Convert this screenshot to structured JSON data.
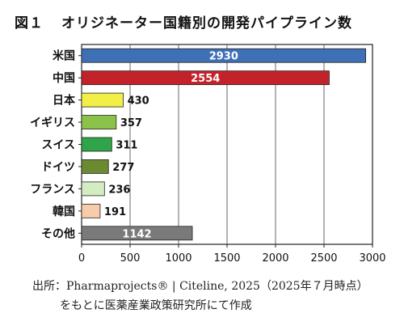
{
  "title": {
    "figure": "図１",
    "text": "オリジネーター国籍別の開発パイプライン数"
  },
  "source": {
    "line1": "出所：Pharmaprojects® | Citeline, 2025（2025年７月時点）",
    "line2": "をもとに医薬産業政策研究所にて作成"
  },
  "chart_data": {
    "type": "bar",
    "orientation": "horizontal",
    "title": "オリジネーター国籍別の開発パイプライン数",
    "xlabel": "",
    "ylabel": "",
    "xlim": [
      0,
      3000
    ],
    "ticks": [
      "0",
      "500",
      "1000",
      "1500",
      "2000",
      "2500",
      "3000"
    ],
    "grid": "vertical",
    "categories": [
      "米国",
      "中国",
      "日本",
      "イギリス",
      "スイス",
      "ドイツ",
      "フランス",
      "韓国",
      "その他"
    ],
    "values": [
      2930,
      2554,
      430,
      357,
      311,
      277,
      236,
      191,
      1142
    ],
    "colors": [
      "#3f6fb5",
      "#c4222b",
      "#f2ef46",
      "#8bc34a",
      "#2fa449",
      "#6b8a32",
      "#d4ecc1",
      "#f8ccaa",
      "#7a7a7a"
    ],
    "label_inside": [
      true,
      true,
      false,
      false,
      false,
      false,
      false,
      false,
      true
    ],
    "label_colors": [
      "#ffffff",
      "#ffffff",
      "#111111",
      "#111111",
      "#111111",
      "#111111",
      "#111111",
      "#111111",
      "#ffffff"
    ]
  }
}
